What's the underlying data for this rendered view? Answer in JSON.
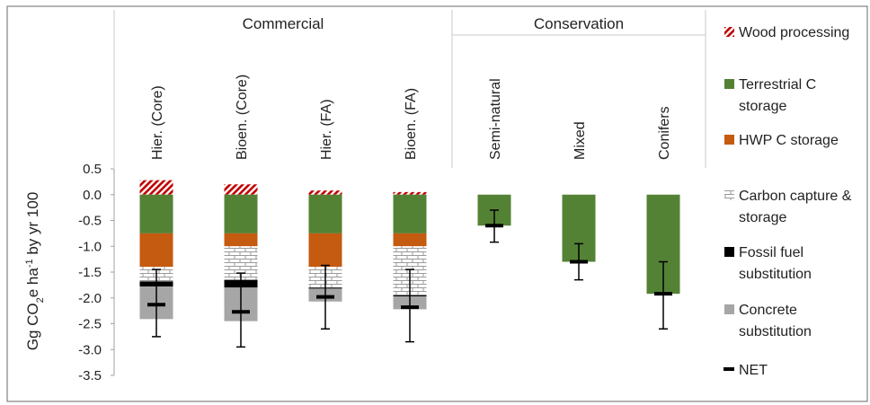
{
  "chart_data": {
    "type": "bar",
    "stacked": true,
    "ylabel": {
      "pre": "Gg CO",
      "sub": "2",
      "mid": "e ha",
      "sup": "-1",
      "post": " by yr 100"
    },
    "ylim": [
      -3.5,
      0.5
    ],
    "yticks": [
      0.5,
      0.0,
      -0.5,
      -1.0,
      -1.5,
      -2.0,
      -2.5,
      -3.0,
      -3.5
    ],
    "ytick_labels": [
      "0.5",
      "0.0",
      "-0.5",
      "-1.0",
      "-1.5",
      "-2.0",
      "-2.5",
      "-3.0",
      "-3.5"
    ],
    "groups": [
      {
        "label": "Commercial",
        "categories": [
          "Hier. (Core)",
          "Bioen. (Core)",
          "Hier. (FA)",
          "Bioen. (FA)"
        ]
      },
      {
        "label": "Conservation",
        "categories": [
          "Semi-natural",
          "Mixed",
          "Conifers"
        ]
      }
    ],
    "categories": [
      "Hier. (Core)",
      "Bioen. (Core)",
      "Hier. (FA)",
      "Bioen. (FA)",
      "Semi-natural",
      "Mixed",
      "Conifers"
    ],
    "series": [
      {
        "name": "Wood processing",
        "color": "#c00000",
        "pattern": "hatch",
        "values": [
          0.28,
          0.2,
          0.08,
          0.05,
          0,
          0,
          0
        ]
      },
      {
        "name": "Terrestrial C storage",
        "color": "#548235",
        "pattern": "solid",
        "values": [
          -0.75,
          -0.75,
          -0.75,
          -0.75,
          -0.6,
          -1.3,
          -1.92
        ]
      },
      {
        "name": "HWP C storage",
        "color": "#c55a11",
        "pattern": "solid",
        "values": [
          -0.65,
          -0.25,
          -0.65,
          -0.25,
          0,
          0,
          0
        ]
      },
      {
        "name": "Carbon capture & storage",
        "color": "#a6a6a6",
        "pattern": "brick",
        "values": [
          -0.28,
          -0.65,
          -0.4,
          -0.95,
          0,
          0,
          0
        ]
      },
      {
        "name": "Fossil fuel substitution",
        "color": "#000000",
        "pattern": "solid",
        "values": [
          -0.1,
          -0.15,
          -0.02,
          -0.02,
          0,
          0,
          0
        ]
      },
      {
        "name": "Concrete substitution",
        "color": "#a6a6a6",
        "pattern": "solid",
        "values": [
          -0.63,
          -0.65,
          -0.25,
          -0.25,
          0,
          0,
          0
        ]
      }
    ],
    "net": {
      "name": "NET",
      "color": "#000000",
      "values": [
        -2.13,
        -2.27,
        -1.98,
        -2.18,
        -0.6,
        -1.3,
        -1.92
      ]
    },
    "error_bars": {
      "low": [
        -2.75,
        -2.95,
        -2.6,
        -2.85,
        -0.92,
        -1.65,
        -2.6
      ],
      "high": [
        -1.45,
        -1.52,
        -1.37,
        -1.45,
        -0.3,
        -0.95,
        -1.3
      ]
    },
    "legend_position": "right",
    "grid": false
  }
}
